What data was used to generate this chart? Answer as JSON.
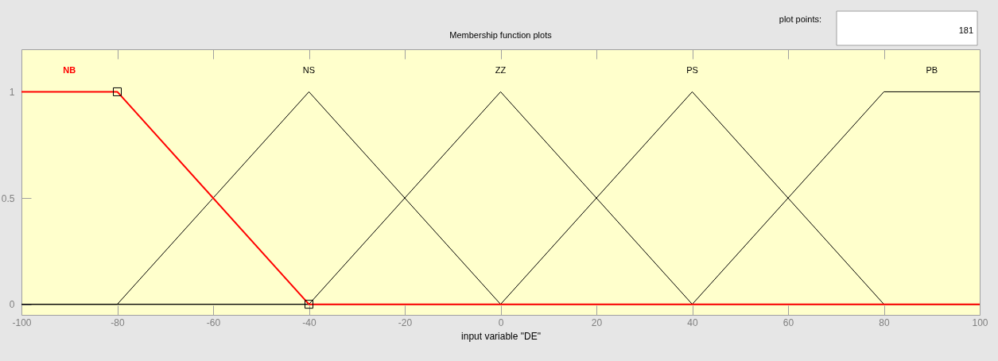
{
  "chart_data": {
    "type": "line",
    "title": "Membership function plots",
    "xlabel": "input variable \"DE\"",
    "annotations": [
      "plot points:",
      "181"
    ],
    "xlim": [
      -100,
      100
    ],
    "ylim": [
      -0.05,
      1.2
    ],
    "xticks": [
      -100,
      -80,
      -60,
      -40,
      -20,
      0,
      20,
      40,
      60,
      80,
      100
    ],
    "yticks": [
      0,
      0.5,
      1
    ],
    "series": [
      {
        "name": "NB",
        "color": "#ff0000",
        "x": [
          -100,
          -80,
          -40,
          100
        ],
        "values": [
          1,
          1,
          0,
          0
        ]
      },
      {
        "name": "NS",
        "color": "#000000",
        "x": [
          -100,
          -80,
          -40,
          0,
          100
        ],
        "values": [
          0,
          0,
          1,
          0,
          0
        ]
      },
      {
        "name": "ZZ",
        "color": "#000000",
        "x": [
          -100,
          -40,
          0,
          40,
          100
        ],
        "values": [
          0,
          0,
          1,
          0,
          0
        ]
      },
      {
        "name": "PS",
        "color": "#000000",
        "x": [
          -100,
          0,
          40,
          80,
          100
        ],
        "values": [
          0,
          0,
          1,
          0,
          0
        ]
      },
      {
        "name": "PB",
        "color": "#000000",
        "x": [
          -100,
          40,
          80,
          100
        ],
        "values": [
          0,
          0,
          1,
          1
        ]
      },
      {
        "type": "scatter",
        "color": "#000000",
        "marker": "square",
        "x": [
          -80,
          -40
        ],
        "values": [
          1,
          0
        ]
      }
    ]
  }
}
